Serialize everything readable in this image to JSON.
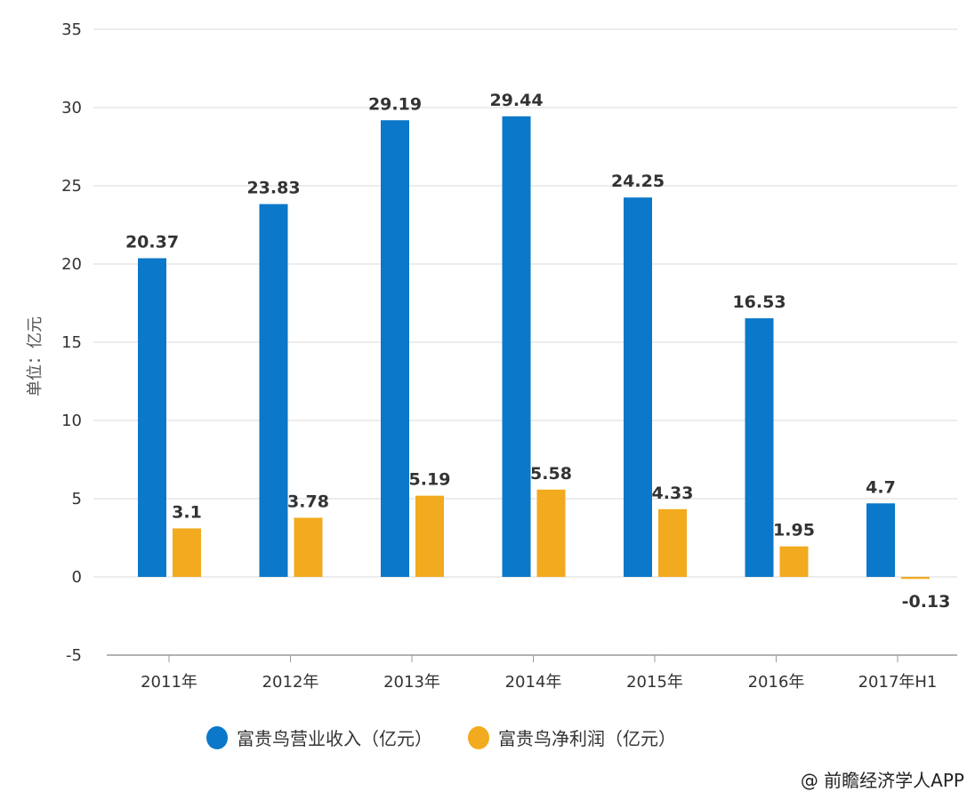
{
  "chart_data": {
    "type": "bar",
    "title": "",
    "ylabel": "单位：亿元",
    "xlabel": "",
    "ylim": [
      -5,
      35
    ],
    "yticks": [
      -5,
      0,
      5,
      10,
      15,
      20,
      25,
      30,
      35
    ],
    "grid": true,
    "legend_position": "bottom",
    "categories": [
      "2011年",
      "2012年",
      "2013年",
      "2014年",
      "2015年",
      "2016年",
      "2017年H1"
    ],
    "series": [
      {
        "name": "富贵鸟营业收入（亿元）",
        "color": "#0b78c9",
        "values": [
          20.37,
          23.83,
          29.19,
          29.44,
          24.25,
          16.53,
          4.7
        ]
      },
      {
        "name": "富贵鸟净利润（亿元）",
        "color": "#f2aa1e",
        "values": [
          3.1,
          3.78,
          5.19,
          5.58,
          4.33,
          1.95,
          -0.13
        ]
      }
    ]
  },
  "footer": "@ 前瞻经济学人APP"
}
